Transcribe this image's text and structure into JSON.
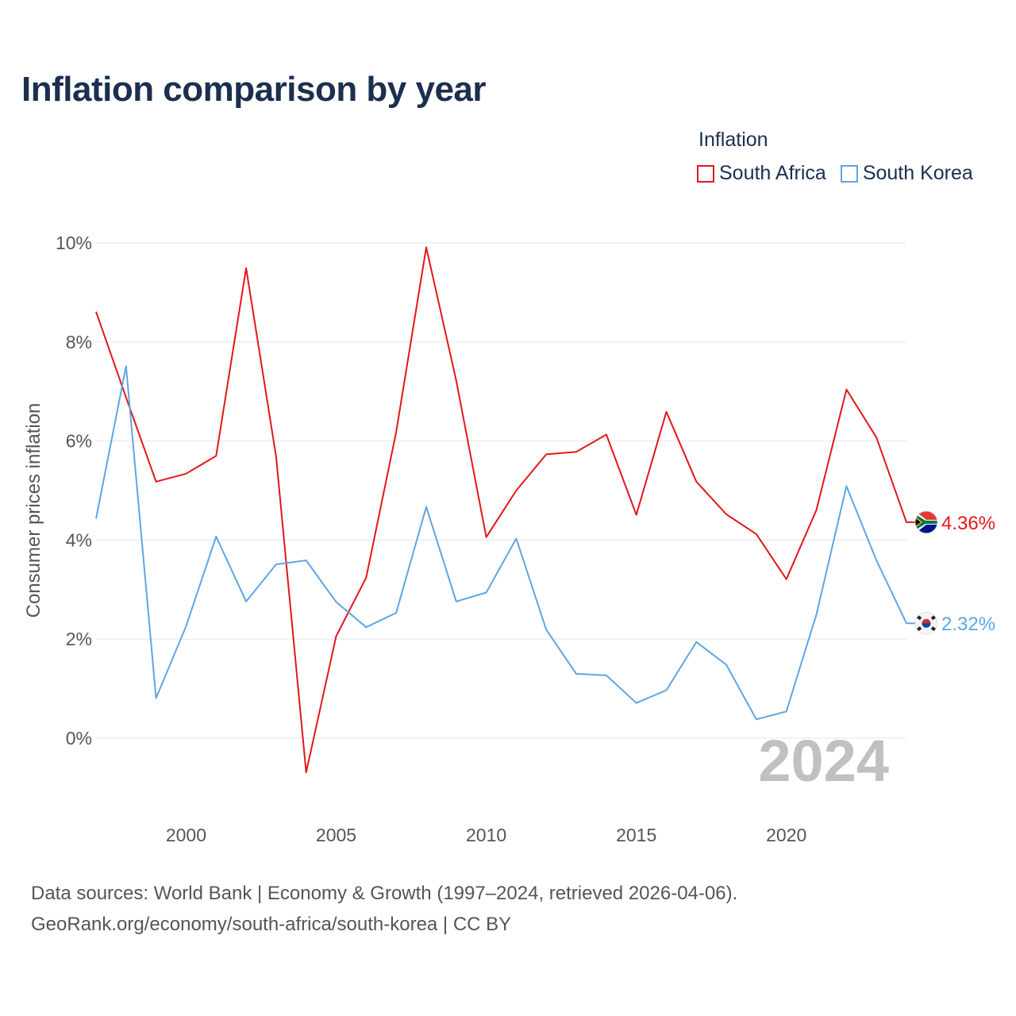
{
  "title": "Inflation comparison by year",
  "legend": {
    "title": "Inflation",
    "items": [
      {
        "label": "South Africa",
        "color": "#e3161b"
      },
      {
        "label": "South Korea",
        "color": "#5fa5e1"
      }
    ]
  },
  "chart_data": {
    "type": "line",
    "title": "Inflation comparison by year",
    "xlabel": "",
    "ylabel": "Consumer prices inflation",
    "xlim": [
      1997,
      2024
    ],
    "ylim": [
      -1.4,
      10
    ],
    "x_ticks": [
      2000,
      2005,
      2010,
      2015,
      2020
    ],
    "y_ticks": [
      0,
      2,
      4,
      6,
      8,
      10
    ],
    "y_tick_labels": [
      "0%",
      "2%",
      "4%",
      "6%",
      "8%",
      "10%"
    ],
    "grid": true,
    "legend_position": "top-right",
    "year_watermark": "2024",
    "x": [
      1997,
      1998,
      1999,
      2000,
      2001,
      2002,
      2003,
      2004,
      2005,
      2006,
      2007,
      2008,
      2009,
      2010,
      2011,
      2012,
      2013,
      2014,
      2015,
      2016,
      2017,
      2018,
      2019,
      2020,
      2021,
      2022,
      2023,
      2024
    ],
    "series": [
      {
        "name": "South Africa",
        "color": "#e3161b",
        "end_label": "4.36%",
        "values": [
          8.61,
          6.88,
          5.18,
          5.34,
          5.7,
          9.49,
          5.68,
          -0.69,
          2.06,
          3.24,
          6.18,
          9.91,
          7.22,
          4.06,
          5.0,
          5.73,
          5.78,
          6.13,
          4.51,
          6.59,
          5.18,
          4.52,
          4.12,
          3.21,
          4.61,
          7.04,
          6.07,
          4.36
        ]
      },
      {
        "name": "South Korea",
        "color": "#5fa5e1",
        "end_label": "2.32%",
        "values": [
          4.43,
          7.51,
          0.81,
          2.26,
          4.07,
          2.76,
          3.51,
          3.59,
          2.75,
          2.24,
          2.53,
          4.67,
          2.76,
          2.94,
          4.03,
          2.19,
          1.3,
          1.27,
          0.71,
          0.97,
          1.94,
          1.48,
          0.38,
          0.54,
          2.5,
          5.09,
          3.59,
          2.32
        ]
      }
    ]
  },
  "source": {
    "line1": "Data sources: World Bank | Economy & Growth (1997–2024, retrieved 2026-04-06).",
    "line2": "GeoRank.org/economy/south-africa/south-korea | CC BY"
  }
}
